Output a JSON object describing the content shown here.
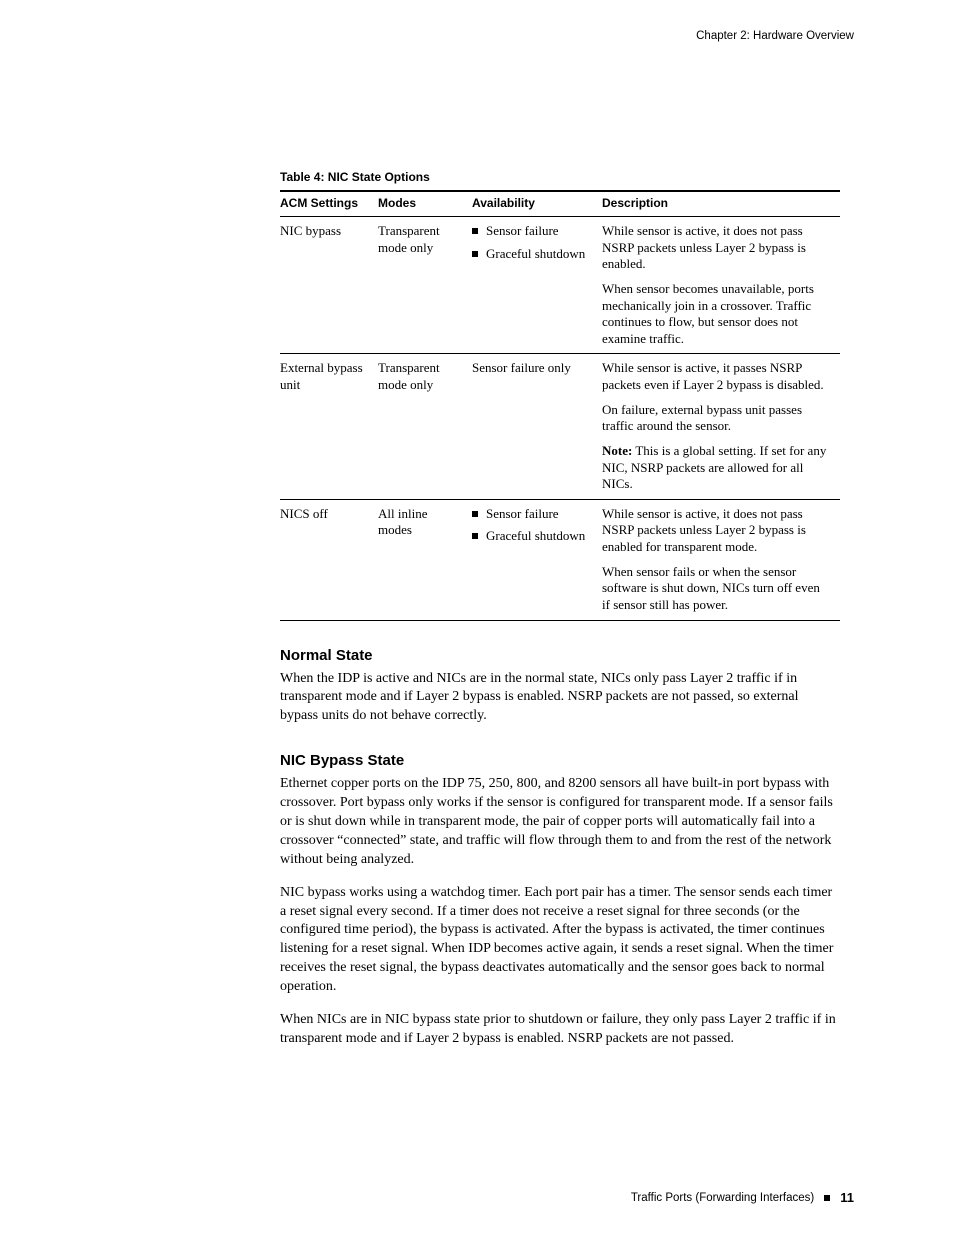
{
  "header": {
    "chapter": "Chapter 2: Hardware Overview"
  },
  "table": {
    "caption": "Table 4:  NIC State Options",
    "columns": {
      "c1": "ACM Settings",
      "c2": "Modes",
      "c3": "Availability",
      "c4": "Description"
    },
    "rows": [
      {
        "acm": "NIC bypass",
        "modes": "Transparent mode only",
        "avail_bullets": [
          "Sensor failure",
          "Graceful shutdown"
        ],
        "desc": [
          "While sensor is active, it does not pass NSRP packets unless Layer 2 bypass is enabled.",
          "When sensor becomes unavailable, ports mechanically join in a crossover. Traffic continues to flow, but sensor does not examine traffic."
        ]
      },
      {
        "acm": "External bypass unit",
        "modes": "Transparent mode only",
        "avail_text": "Sensor failure only",
        "desc": [
          "While sensor is active, it passes NSRP packets even if Layer 2 bypass is disabled.",
          "On failure, external bypass unit passes traffic around the sensor."
        ],
        "note_label": "Note:",
        "note_text": " This is a global setting. If set for any NIC, NSRP packets are allowed for all NICs."
      },
      {
        "acm": "NICS off",
        "modes": "All inline modes",
        "avail_bullets": [
          "Sensor failure",
          "Graceful shutdown"
        ],
        "desc": [
          "While sensor is active, it does not pass NSRP packets unless Layer 2 bypass is enabled for transparent mode.",
          "When sensor fails or when the sensor software is shut down, NICs turn off even if sensor still has power."
        ]
      }
    ]
  },
  "sections": {
    "s1": {
      "title": "Normal State",
      "paras": [
        "When the IDP is active and NICs are in the normal state, NICs only pass Layer 2 traffic if in transparent mode and if Layer 2 bypass is enabled. NSRP packets are not passed, so external bypass units do not behave correctly."
      ]
    },
    "s2": {
      "title": "NIC Bypass State",
      "paras": [
        "Ethernet copper ports on the IDP 75, 250, 800, and 8200 sensors all have built-in port bypass with crossover. Port bypass only works if the sensor is configured for transparent mode. If a sensor fails or is shut down while in transparent mode, the pair of copper ports will automatically fail into a crossover “connected” state, and traffic will flow through them to and from the rest of the network without being analyzed.",
        "NIC bypass works using a watchdog timer. Each port pair has a timer. The sensor sends each timer a reset signal every second. If a timer does not receive a reset signal for three seconds (or the configured time period), the bypass is activated. After the bypass is activated, the timer continues listening for a reset signal. When IDP becomes active again, it sends a reset signal. When the timer receives the reset signal, the bypass deactivates automatically and the sensor goes back to normal operation.",
        "When NICs are in NIC bypass state prior to shutdown or failure, they only pass Layer 2 traffic if in transparent mode and if Layer 2 bypass is enabled. NSRP packets are not passed."
      ]
    }
  },
  "footer": {
    "section": "Traffic Ports (Forwarding Interfaces)",
    "page": "11"
  }
}
